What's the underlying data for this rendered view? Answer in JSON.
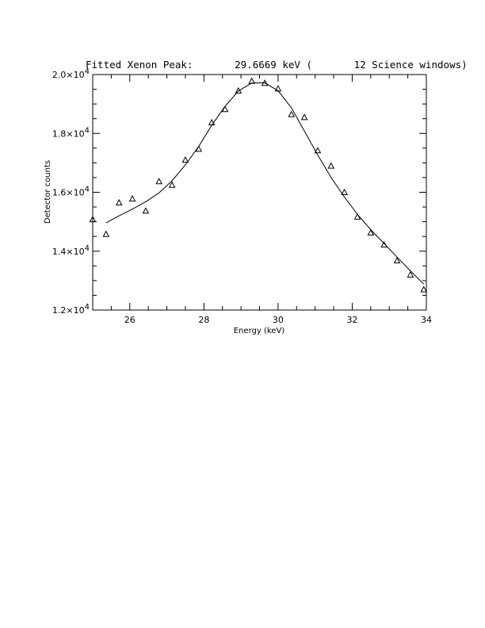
{
  "chart_data": {
    "type": "scatter",
    "title": "Fitted Xenon Peak:       29.6669 keV (       12 Science windows)",
    "xlabel": "Energy (keV)",
    "ylabel": "Detector counts",
    "xlim": [
      25,
      34
    ],
    "ylim": [
      12000,
      20000
    ],
    "x_ticks": [
      "26",
      "28",
      "30",
      "32",
      "34"
    ],
    "x_tick_values": [
      26,
      28,
      30,
      32,
      34
    ],
    "y_tick_values": [
      12000,
      14000,
      16000,
      18000,
      20000
    ],
    "y_tick_labels": [
      {
        "mantissa": "1.2×10",
        "exponent": "4"
      },
      {
        "mantissa": "1.4×10",
        "exponent": "4"
      },
      {
        "mantissa": "1.6×10",
        "exponent": "4"
      },
      {
        "mantissa": "1.8×10",
        "exponent": "4"
      },
      {
        "mantissa": "2.0×10",
        "exponent": "4"
      }
    ],
    "grid": false,
    "series": [
      {
        "kind": "data-points",
        "marker": "triangle",
        "x": [
          25.0,
          25.36,
          25.71,
          26.07,
          26.43,
          26.79,
          27.14,
          27.5,
          27.86,
          28.21,
          28.57,
          28.93,
          29.29,
          29.64,
          30.0,
          30.36,
          30.71,
          31.07,
          31.43,
          31.79,
          32.14,
          32.5,
          32.86,
          33.21,
          33.57,
          33.93
        ],
        "y": [
          15080,
          14580,
          15650,
          15780,
          15370,
          16370,
          16250,
          17100,
          17470,
          18370,
          18820,
          19450,
          19780,
          19710,
          19520,
          18650,
          18550,
          17420,
          16900,
          16000,
          15170,
          14630,
          14220,
          13680,
          13200,
          12700
        ]
      },
      {
        "kind": "fit-curve",
        "marker": "none",
        "x": [
          25.36,
          25.71,
          26.07,
          26.43,
          26.79,
          27.14,
          27.5,
          27.86,
          28.21,
          28.57,
          28.93,
          29.29,
          29.64,
          30.0,
          30.36,
          30.71,
          31.07,
          31.43,
          31.79,
          32.14,
          32.5,
          32.86,
          33.21,
          33.57,
          33.93
        ],
        "y": [
          14960,
          15200,
          15430,
          15680,
          15980,
          16390,
          16930,
          17560,
          18280,
          18920,
          19440,
          19710,
          19720,
          19450,
          18870,
          18080,
          17270,
          16500,
          15840,
          15250,
          14730,
          14260,
          13800,
          13330,
          12880
        ]
      }
    ]
  }
}
